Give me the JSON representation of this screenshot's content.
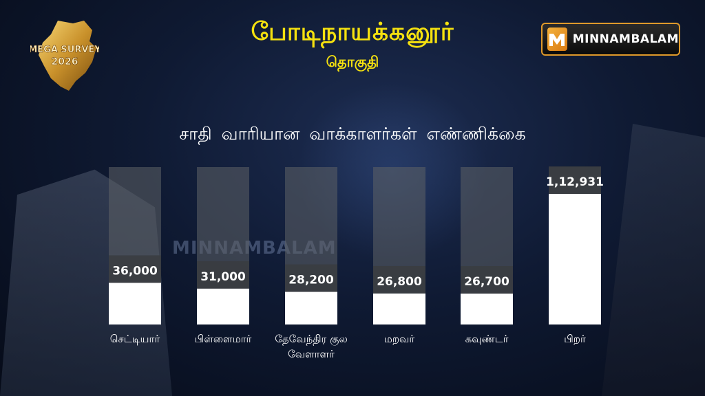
{
  "header": {
    "title": "போடிநாயக்கனூர்",
    "subtitle": "தொகுதி"
  },
  "badge": {
    "line1": "MEGA SURVEY",
    "year": "2026"
  },
  "brand": {
    "name": "MINNAMBALAM",
    "watermark": "MINNAMBALAM"
  },
  "colors": {
    "title": "#f5e10f",
    "bar_fill": "#ffffff",
    "bar_track": "#5f6266",
    "brand_accent": "#e09a2a"
  },
  "chart_data": {
    "type": "bar",
    "title": "சாதி வாரியான வாக்காளர்கள் எண்ணிக்கை",
    "categories": [
      "செட்டியார்",
      "பிள்ளைமார்",
      "தேவேந்திர குல வேளாளர்",
      "மறவர்",
      "கவுண்டர்",
      "பிறர்"
    ],
    "category_lines": [
      [
        "செட்டியார்"
      ],
      [
        "பிள்ளைமார்"
      ],
      [
        "தேவேந்திர குல",
        "வேளாளர்"
      ],
      [
        "மறவர்"
      ],
      [
        "கவுண்டர்"
      ],
      [
        "பிறர்"
      ]
    ],
    "values": [
      36000,
      31000,
      28200,
      26800,
      26700,
      112931
    ],
    "value_labels": [
      "36,000",
      "31,000",
      "28,200",
      "26,800",
      "26,700",
      "1,12,931"
    ],
    "xlabel": "",
    "ylabel": "",
    "ylim": [
      0,
      130000
    ],
    "grid": false
  }
}
